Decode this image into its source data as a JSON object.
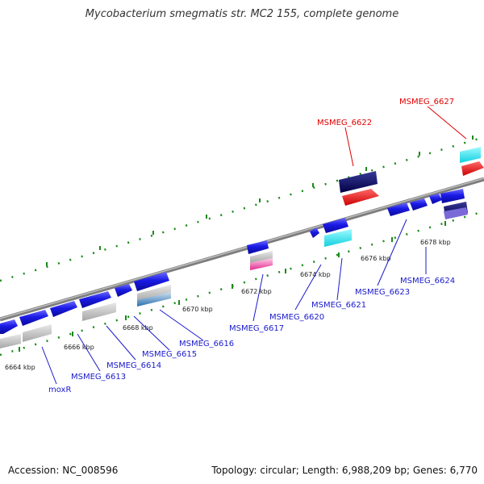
{
  "title": "Mycobacterium smegmatis str. MC2 155, complete genome",
  "footer": {
    "accession": "Accession: NC_008596",
    "summary": "Topology: circular; Length: 6,988,209 bp; Genes: 6,770"
  },
  "scale_labels": [
    "6664 kbp",
    "6666 kbp",
    "6668 kbp",
    "6670 kbp",
    "6672 kbp",
    "6674 kbp",
    "6676 kbp",
    "6678 kbp"
  ],
  "gene_labels": {
    "moxR": "moxR",
    "g6613": "MSMEG_6613",
    "g6614": "MSMEG_6614",
    "g6615": "MSMEG_6615",
    "g6616": "MSMEG_6616",
    "g6617": "MSMEG_6617",
    "g6620": "MSMEG_6620",
    "g6621": "MSMEG_6621",
    "g6622": "MSMEG_6622",
    "g6623": "MSMEG_6623",
    "g6624": "MSMEG_6624",
    "g6627": "MSMEG_6627"
  },
  "colors": {
    "forward_gene": "#1a1ae6",
    "reverse_gene": "#1a1ae6",
    "highlight_label": "#e00000",
    "normal_label": "#1a1acc",
    "rna_gray": "#bdbdbd",
    "cyan_feature": "#22e6f0",
    "red_feature": "#ee1111",
    "navy_feature": "#0b0b66",
    "pink_feature": "#f04aa8",
    "ticks": "#1a8a1a",
    "backbone": "#8a8a8a"
  }
}
